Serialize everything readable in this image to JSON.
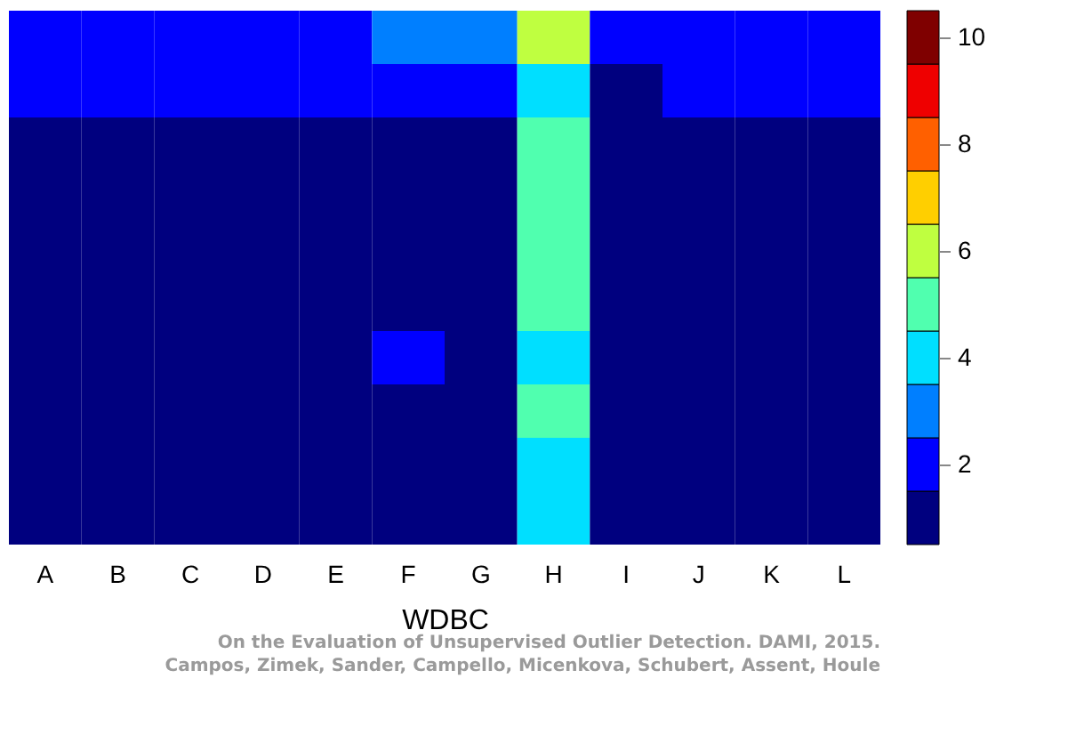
{
  "chart_data": {
    "type": "heatmap",
    "xlabel": "WDBC",
    "categories": [
      "A",
      "B",
      "C",
      "D",
      "E",
      "F",
      "G",
      "H",
      "I",
      "J",
      "K",
      "L"
    ],
    "y_categories": [
      null,
      null,
      null,
      null,
      null,
      null,
      null,
      null,
      null,
      null
    ],
    "cells": [
      [
        2,
        2,
        2,
        2,
        2,
        3,
        3,
        6,
        2,
        2,
        2,
        2
      ],
      [
        2,
        2,
        2,
        2,
        2,
        2,
        2,
        4,
        1,
        2,
        2,
        2
      ],
      [
        1,
        1,
        1,
        1,
        1,
        1,
        1,
        5,
        1,
        1,
        1,
        1
      ],
      [
        1,
        1,
        1,
        1,
        1,
        1,
        1,
        5,
        1,
        1,
        1,
        1
      ],
      [
        1,
        1,
        1,
        1,
        1,
        1,
        1,
        5,
        1,
        1,
        1,
        1
      ],
      [
        1,
        1,
        1,
        1,
        1,
        1,
        1,
        5,
        1,
        1,
        1,
        1
      ],
      [
        1,
        1,
        1,
        1,
        1,
        2,
        1,
        4,
        1,
        1,
        1,
        1
      ],
      [
        1,
        1,
        1,
        1,
        1,
        1,
        1,
        5,
        1,
        1,
        1,
        1
      ],
      [
        1,
        1,
        1,
        1,
        1,
        1,
        1,
        4,
        1,
        1,
        1,
        1
      ],
      [
        1,
        1,
        1,
        1,
        1,
        1,
        1,
        4,
        1,
        1,
        1,
        1
      ]
    ],
    "colors": [
      "#00007f",
      "#0000ff",
      "#007fff",
      "#00dfff",
      "#50ffaf",
      "#bfff40",
      "#ffcf00",
      "#ff6000",
      "#ef0000",
      "#7f0000"
    ],
    "clim": [
      0.5,
      10.5
    ],
    "cticks": [
      2,
      4,
      6,
      8,
      10
    ],
    "tick_labels": "x",
    "annotations": [
      "On the Evaluation of Unsupervised Outlier Detection. DAMI, 2015.",
      "Campos, Zimek, Sander, Campello, Micenkova, Schubert, Assent, Houle"
    ]
  }
}
